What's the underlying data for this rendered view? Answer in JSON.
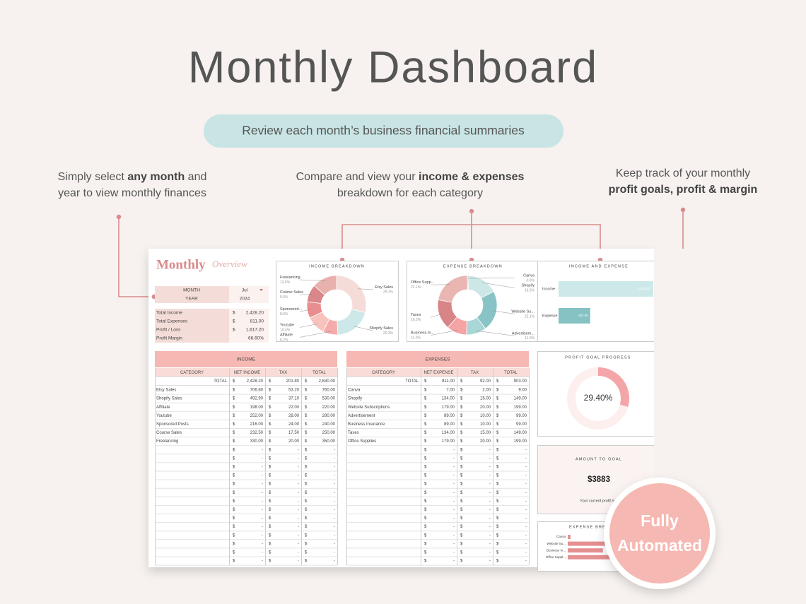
{
  "header": {
    "title": "Monthly Dashboard",
    "subtitle": "Review each month’s business financial summaries"
  },
  "callouts": [
    {
      "lines": [
        [
          {
            "text": "Simply select "
          },
          {
            "text": "any month",
            "bold": true
          },
          {
            "text": " and"
          }
        ],
        [
          {
            "text": "year to view monthly finances"
          }
        ]
      ]
    },
    {
      "lines": [
        [
          {
            "text": "Compare and view your "
          },
          {
            "text": "income & expenses",
            "bold": true
          }
        ],
        [
          {
            "text": "breakdown for each category"
          }
        ]
      ]
    },
    {
      "lines": [
        [
          {
            "text": "Keep track of your monthly"
          }
        ],
        [
          {
            "text": "profit goals, profit & margin",
            "bold": true
          }
        ]
      ]
    }
  ],
  "dashboard": {
    "logo": {
      "main": "Monthly",
      "script": "Overview"
    },
    "currency": "$",
    "selector": [
      {
        "label": "MONTH",
        "value": "Jul"
      },
      {
        "label": "YEAR",
        "value": "2024"
      }
    ],
    "summary": [
      {
        "label": "Total Income",
        "currency": "$",
        "value": "2,428.20"
      },
      {
        "label": "Total Expenses",
        "currency": "$",
        "value": "811.00"
      },
      {
        "label": "Profit / Loss",
        "currency": "$",
        "value": "1,617.20"
      },
      {
        "label": "Profit Margin",
        "value": "66.60%"
      }
    ],
    "income_table": {
      "title": "INCOME",
      "columns": [
        "CATEGORY",
        "NET INCOME",
        "TAX",
        "TOTAL"
      ],
      "total": {
        "label": "TOTAL",
        "values": [
          "2,428.20",
          "201.80",
          "2,630.00"
        ]
      },
      "rows": [
        [
          "Etsy Sales",
          "706.80",
          "53.20",
          "760.00"
        ],
        [
          "Shopify Sales",
          "492.90",
          "37.10",
          "530.00"
        ],
        [
          "Affiliate",
          "198.00",
          "22.00",
          "220.00"
        ],
        [
          "Youtube",
          "252.00",
          "28.00",
          "280.00"
        ],
        [
          "Sponsored Posts",
          "216.00",
          "24.00",
          "240.00"
        ],
        [
          "Course Sales",
          "232.50",
          "17.50",
          "250.00"
        ],
        [
          "Freelancing",
          "330.00",
          "20.00",
          "350.00"
        ],
        [
          null,
          "-",
          "-",
          "-"
        ],
        [
          null,
          "-",
          "-",
          "-"
        ],
        [
          null,
          "-",
          "-",
          "-"
        ],
        [
          null,
          "-",
          "-",
          "-"
        ],
        [
          null,
          "-",
          "-",
          "-"
        ],
        [
          null,
          "-",
          "-",
          "-"
        ],
        [
          null,
          "-",
          "-",
          "-"
        ],
        [
          null,
          "-",
          "-",
          "-"
        ],
        [
          null,
          "-",
          "-",
          "-"
        ],
        [
          null,
          "-",
          "-",
          "-"
        ],
        [
          null,
          "-",
          "-",
          "-"
        ],
        [
          null,
          "-",
          "-",
          "-"
        ],
        [
          null,
          "-",
          "-",
          "-"
        ],
        [
          null,
          "-",
          "-",
          "-"
        ]
      ]
    },
    "expense_table": {
      "title": "EXPENSES",
      "columns": [
        "CATEGORY",
        "NET EXPENSE",
        "TAX",
        "TOTAL"
      ],
      "total": {
        "label": "TOTAL",
        "values": [
          "811.00",
          "92.00",
          "903.00"
        ]
      },
      "rows": [
        [
          "Canva",
          "7.00",
          "2.00",
          "9.00"
        ],
        [
          "Shopify",
          "134.00",
          "15.00",
          "149.00"
        ],
        [
          "Website Subscriptions",
          "179.00",
          "20.00",
          "199.00"
        ],
        [
          "Advertisement",
          "89.00",
          "10.00",
          "99.00"
        ],
        [
          "Business Insurance",
          "89.00",
          "10.00",
          "99.00"
        ],
        [
          "Taxes",
          "134.00",
          "15.00",
          "149.00"
        ],
        [
          "Office Supplies",
          "179.00",
          "20.00",
          "199.00"
        ],
        [
          null,
          "-",
          "-",
          "-"
        ],
        [
          null,
          "-",
          "-",
          "-"
        ],
        [
          null,
          "-",
          "-",
          "-"
        ],
        [
          null,
          "-",
          "-",
          "-"
        ],
        [
          null,
          "-",
          "-",
          "-"
        ],
        [
          null,
          "-",
          "-",
          "-"
        ],
        [
          null,
          "-",
          "-",
          "-"
        ],
        [
          null,
          "-",
          "-",
          "-"
        ],
        [
          null,
          "-",
          "-",
          "-"
        ],
        [
          null,
          "-",
          "-",
          "-"
        ],
        [
          null,
          "-",
          "-",
          "-"
        ],
        [
          null,
          "-",
          "-",
          "-"
        ],
        [
          null,
          "-",
          "-",
          "-"
        ],
        [
          null,
          "-",
          "-",
          "-"
        ]
      ]
    },
    "amount_to_goal": {
      "title": "AMOUNT TO GOAL",
      "value": "$3883",
      "note": "Your current profit is c"
    }
  },
  "chart_data": [
    {
      "type": "donut",
      "title": "INCOME BREAKDOWN",
      "categories": [
        "Etsy Sales",
        "Shopify Sales",
        "Affiliate",
        "Youtube",
        "Sponsored...",
        "Course Sales",
        "Freelancing"
      ],
      "values": [
        29.1,
        20.3,
        8.2,
        10.4,
        8.9,
        9.6,
        13.6
      ],
      "value_labels": [
        "29.1%",
        "20.3%",
        "8.2%",
        "10.4%",
        "8.9%",
        "9.6%",
        "13.6%"
      ],
      "colors": [
        "#f5dcd8",
        "#cde8e8",
        "#f5abaa",
        "#f8c3be",
        "#e98d8f",
        "#d98788",
        "#e9b1ac"
      ]
    },
    {
      "type": "donut",
      "title": "EXPENSE BREAKDOWN",
      "categories": [
        "Canva",
        "Shopify",
        "Website Su...",
        "Advertisem...",
        "Business In...",
        "Taxes",
        "Office Supp..."
      ],
      "values": [
        0.9,
        16.5,
        22.1,
        11.0,
        11.0,
        16.5,
        22.1
      ],
      "value_labels": [
        "0.9%",
        "16.5%",
        "22.1%",
        "11.0%",
        "11.0%",
        "16.5%",
        "22.1%"
      ],
      "colors": [
        "#b7dcdc",
        "#cde7e7",
        "#88c3c5",
        "#a9d6d7",
        "#f5a3a5",
        "#d88587",
        "#e9b6b1"
      ]
    },
    {
      "type": "bar",
      "title": "INCOME AND EXPENSE",
      "categories": [
        "Income",
        "Expense"
      ],
      "values": [
        2428.2,
        811.0
      ],
      "value_labels": [
        "2,428.20",
        "811.00"
      ],
      "colors": [
        "#cde8e8",
        "#86c1c3"
      ]
    },
    {
      "type": "gauge",
      "title": "PROFIT GOAL PROGRESS",
      "value": 29.4,
      "value_label": "29.40%",
      "ylim": [
        0,
        100
      ],
      "color": "#f4a5a8",
      "track_color": "#fcefee"
    },
    {
      "type": "bar",
      "title": "EXPENSE BREAKDOWN",
      "categories": [
        "Canva",
        "Website Su...",
        "Business In...",
        "Office Suppl..."
      ],
      "values": [
        7.0,
        179.0,
        89.0,
        179.0
      ],
      "colors": [
        "#e58f91",
        "#e58f91",
        "#e58f91",
        "#e58f91"
      ]
    }
  ],
  "badge": {
    "lines": [
      "Fully",
      "Automated"
    ]
  }
}
